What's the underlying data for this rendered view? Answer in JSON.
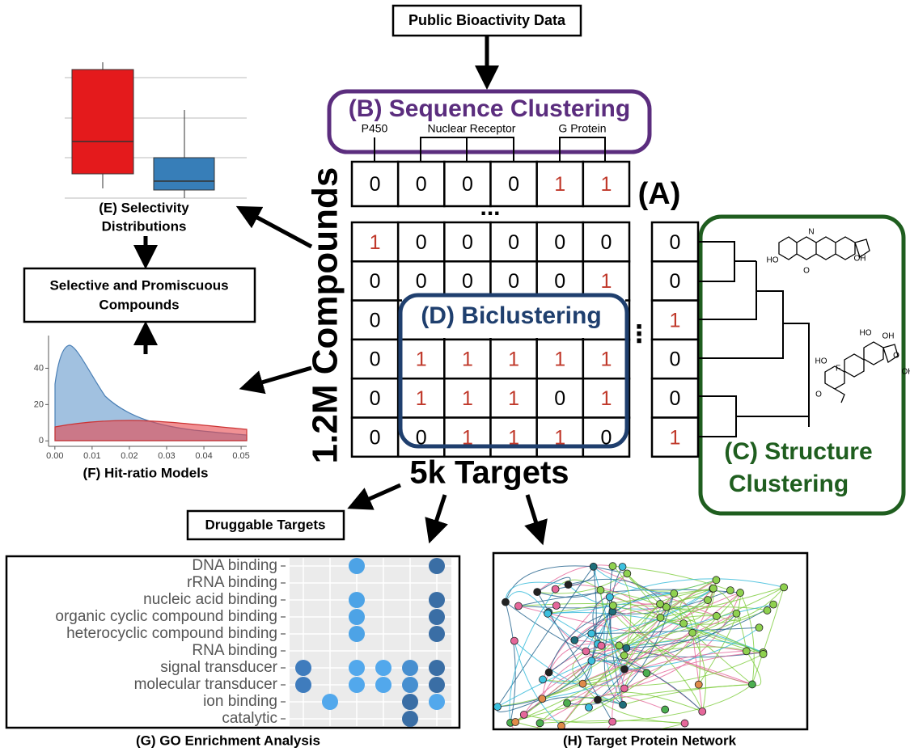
{
  "source": "Public Bioactivity Data",
  "sequence_clustering": {
    "title": "(B) Sequence Clustering",
    "groups": [
      "P450",
      "Nuclear Receptor",
      "G Protein"
    ]
  },
  "matrix": {
    "label": "(A)",
    "row_axis": "1.2M Compounds",
    "column_axis": "5k Targets",
    "top_row": [
      0,
      0,
      0,
      0,
      1,
      1
    ],
    "rows": [
      [
        1,
        0,
        0,
        0,
        0,
        0
      ],
      [
        0,
        0,
        0,
        0,
        0,
        1
      ],
      [
        0,
        null,
        null,
        null,
        null,
        null
      ],
      [
        0,
        1,
        1,
        1,
        1,
        1
      ],
      [
        0,
        1,
        1,
        1,
        0,
        1
      ],
      [
        0,
        0,
        1,
        1,
        1,
        0
      ]
    ],
    "side_column": [
      0,
      0,
      1,
      0,
      0,
      1
    ]
  },
  "biclustering": "(D) Biclustering",
  "structure_clustering": [
    "(C) Structure",
    "Clustering"
  ],
  "structures": [
    {
      "labels": [
        "N",
        "HO",
        "O",
        "OH"
      ]
    },
    {
      "labels": [
        "OH",
        "HO",
        "HO",
        "O",
        "F",
        "OH",
        "O"
      ]
    }
  ],
  "selectivity": {
    "caption": [
      "(E) Selectivity",
      "Distributions"
    ]
  },
  "selective_box": [
    "Selective and Promiscuous",
    "Compounds"
  ],
  "hit_ratio": {
    "caption": "(F) Hit-ratio Models",
    "xlim": [
      -0.0017,
      0.0515
    ],
    "ylim": [
      -3,
      58
    ],
    "xticks": [
      {
        "value": 0,
        "label": "0.00"
      },
      {
        "value": 0.01,
        "label": "0.01"
      },
      {
        "value": 0.02,
        "label": "0.02"
      },
      {
        "value": 0.03,
        "label": "0.03"
      },
      {
        "value": 0.04,
        "label": "0.04"
      },
      {
        "value": 0.05,
        "label": "0.05"
      }
    ],
    "yticks": [
      0,
      20,
      40
    ]
  },
  "druggable": "Druggable Targets",
  "go": {
    "caption": "(G) GO Enrichment Analysis",
    "terms": [
      "DNA binding",
      "rRNA binding",
      "nucleic acid binding",
      "organic cyclic compound binding",
      "heterocyclic compound binding",
      "RNA binding",
      "signal transducer",
      "molecular transducer",
      "ion binding",
      "catalytic"
    ],
    "dots": [
      [
        null,
        null,
        "#4da3e6",
        null,
        null,
        "#3a6ea5"
      ],
      [
        null,
        null,
        null,
        null,
        null,
        null
      ],
      [
        null,
        null,
        "#4da3e6",
        null,
        null,
        "#3a6ea5"
      ],
      [
        null,
        null,
        "#4da3e6",
        null,
        null,
        "#3a6ea5"
      ],
      [
        null,
        null,
        "#4da3e6",
        null,
        null,
        "#3a6ea5"
      ],
      [
        null,
        null,
        null,
        null,
        null,
        null
      ],
      [
        "#3f7cbd",
        null,
        "#52a8ec",
        "#52a8ec",
        "#478fd0",
        "#3a6ea5"
      ],
      [
        "#3f7cbd",
        null,
        "#52a8ec",
        "#52a8ec",
        "#478fd0",
        "#3a6ea5"
      ],
      [
        null,
        "#52a8ec",
        null,
        null,
        "#3a6ea5",
        "#52a8ec"
      ],
      [
        null,
        null,
        null,
        null,
        "#3a6ea5",
        null
      ]
    ]
  },
  "network": {
    "caption": "(H) Target Protein Network"
  }
}
